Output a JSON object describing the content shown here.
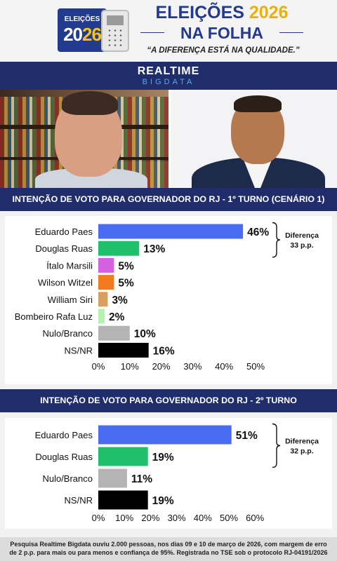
{
  "header": {
    "logo_line1": "ELEIÇÕES",
    "logo_year_a": "20",
    "logo_year_b": "26",
    "title_part1": "ELEIÇÕES",
    "title_year": "2026",
    "title_line2": "NA FOLHA",
    "slogan": "“A DIFERENÇA ESTÁ NA QUALIDADE.”"
  },
  "brand": {
    "name": "REALTIME",
    "sub": "BIGDATA"
  },
  "colors": {
    "navy": "#1f2e6b",
    "title_blue": "#23398f",
    "accent_yellow": "#e9b10f"
  },
  "chart_data": [
    {
      "type": "bar",
      "orientation": "horizontal",
      "title": "INTENÇÃO DE VOTO PARA GOVERNADOR DO RJ - 1º TURNO (CENÁRIO 1)",
      "categories": [
        "Eduardo Paes",
        "Douglas Ruas",
        "Ítalo Marsili",
        "Wilson Witzel",
        "William Siri",
        "Bombeiro Rafa Luz",
        "Nulo/Branco",
        "NS/NR"
      ],
      "values": [
        46,
        13,
        5,
        5,
        3,
        2,
        10,
        16
      ],
      "value_labels": [
        "46%",
        "13%",
        "5%",
        "5%",
        "3%",
        "2%",
        "10%",
        "16%"
      ],
      "colors": [
        "#4a6cf2",
        "#1fbf6b",
        "#d462e0",
        "#f27a20",
        "#d8a060",
        "#b8f0b4",
        "#b4b4b4",
        "#000000"
      ],
      "xlim": [
        0,
        50
      ],
      "ticks": [
        "0%",
        "10%",
        "20%",
        "30%",
        "40%",
        "50%"
      ],
      "annotation": {
        "label": "Diferença",
        "value": "33 p.p."
      }
    },
    {
      "type": "bar",
      "orientation": "horizontal",
      "title": "INTENÇÃO DE VOTO PARA GOVERNADOR DO RJ - 2º TURNO",
      "categories": [
        "Eduardo Paes",
        "Douglas Ruas",
        "Nulo/Branco",
        "NS/NR"
      ],
      "values": [
        51,
        19,
        11,
        19
      ],
      "value_labels": [
        "51%",
        "19%",
        "11%",
        "19%"
      ],
      "colors": [
        "#4a6cf2",
        "#1fbf6b",
        "#b4b4b4",
        "#000000"
      ],
      "xlim": [
        0,
        60
      ],
      "ticks": [
        "0%",
        "10%",
        "20%",
        "30%",
        "40%",
        "50%",
        "60%"
      ],
      "annotation": {
        "label": "Diferença",
        "value": "32 p.p."
      }
    }
  ],
  "footer": {
    "note": "Pesquisa Realtime Bigdata ouviu 2.000 pessoas, nos dias 09 e 10 de março de 2026, com margem de erro de 2 p.p. para mais ou para menos e confiança de 95%. Registrada no TSE sob o protocolo RJ-04191/2026"
  }
}
